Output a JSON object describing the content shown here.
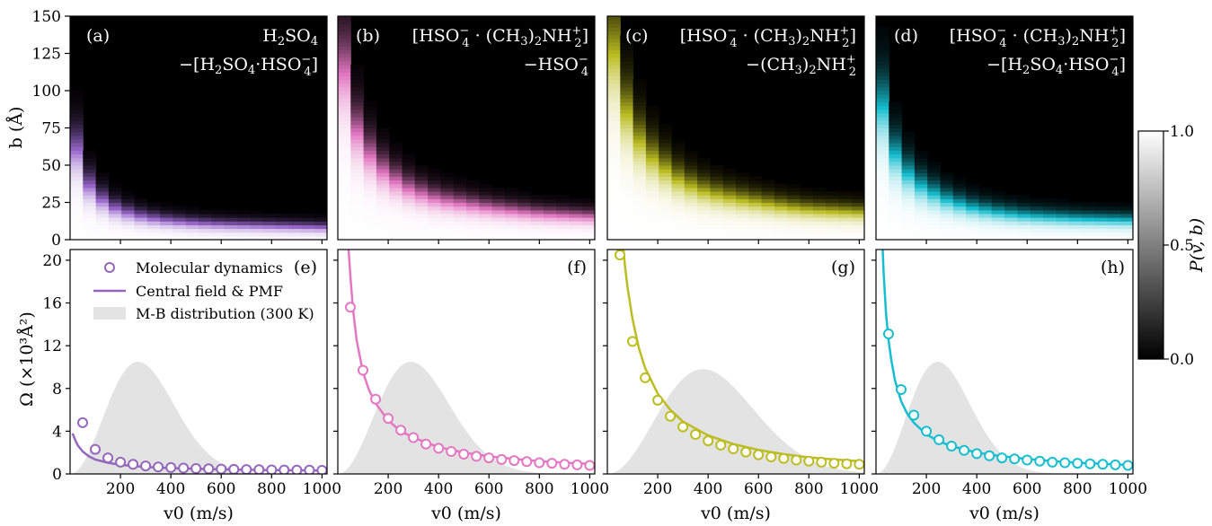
{
  "chart_data": [
    {
      "panel": "a",
      "type": "heatmap",
      "label": "(a)",
      "title_lines": [
        "H2SO4",
        "−[H2SO4·HSO4−]"
      ],
      "ylabel": "b (Å)",
      "xlim": [
        0,
        1020
      ],
      "ylim": [
        0,
        150
      ],
      "yticks": [
        "0",
        "25",
        "50",
        "75",
        "100",
        "125",
        "150"
      ],
      "color": "#9966cc",
      "boundary_b": [
        [
          20,
          75
        ],
        [
          40,
          60
        ],
        [
          60,
          48
        ],
        [
          80,
          40
        ],
        [
          100,
          34
        ],
        [
          150,
          26
        ],
        [
          200,
          21
        ],
        [
          300,
          16
        ],
        [
          400,
          13.5
        ],
        [
          500,
          12
        ],
        [
          600,
          11
        ],
        [
          700,
          10.5
        ],
        [
          800,
          10
        ],
        [
          900,
          9.5
        ],
        [
          1000,
          9
        ]
      ]
    },
    {
      "panel": "b",
      "type": "heatmap",
      "label": "(b)",
      "title_lines": [
        "[HSO4−·(CH3)2NH2+]",
        "−HSO4−"
      ],
      "xlim": [
        0,
        1020
      ],
      "ylim": [
        0,
        150
      ],
      "color": "#e377c2",
      "boundary_b": [
        [
          20,
          140
        ],
        [
          40,
          110
        ],
        [
          60,
          90
        ],
        [
          80,
          78
        ],
        [
          100,
          68
        ],
        [
          150,
          55
        ],
        [
          200,
          45
        ],
        [
          300,
          34
        ],
        [
          400,
          28
        ],
        [
          500,
          25
        ],
        [
          600,
          22
        ],
        [
          700,
          20
        ],
        [
          800,
          18
        ],
        [
          900,
          17
        ],
        [
          1000,
          16
        ]
      ]
    },
    {
      "panel": "c",
      "type": "heatmap",
      "label": "(c)",
      "title_lines": [
        "[HSO4−·(CH3)2NH2+]",
        "−(CH3)2NH2+"
      ],
      "xlim": [
        0,
        1020
      ],
      "ylim": [
        0,
        150
      ],
      "color": "#bcbd22",
      "boundary_b": [
        [
          20,
          150
        ],
        [
          40,
          125
        ],
        [
          60,
          105
        ],
        [
          80,
          92
        ],
        [
          100,
          80
        ],
        [
          150,
          64
        ],
        [
          200,
          54
        ],
        [
          300,
          40
        ],
        [
          400,
          33
        ],
        [
          500,
          29
        ],
        [
          600,
          26
        ],
        [
          700,
          23
        ],
        [
          800,
          21
        ],
        [
          900,
          20
        ],
        [
          1000,
          19
        ]
      ]
    },
    {
      "panel": "d",
      "type": "heatmap",
      "label": "(d)",
      "title_lines": [
        "[HSO4−·(CH3)2NH2+]",
        "−[H2SO4·HSO4−]"
      ],
      "xlim": [
        0,
        1020
      ],
      "ylim": [
        0,
        150
      ],
      "color": "#17becf",
      "boundary_b": [
        [
          20,
          110
        ],
        [
          40,
          88
        ],
        [
          60,
          73
        ],
        [
          80,
          62
        ],
        [
          100,
          55
        ],
        [
          150,
          43
        ],
        [
          200,
          36
        ],
        [
          300,
          27
        ],
        [
          400,
          22
        ],
        [
          500,
          19
        ],
        [
          600,
          17
        ],
        [
          700,
          16
        ],
        [
          800,
          15
        ],
        [
          900,
          14.5
        ],
        [
          1000,
          14
        ]
      ]
    },
    {
      "panel": "e",
      "type": "scatter",
      "label": "(e)",
      "xlabel": "v0 (m/s)",
      "ylabel": "Ω (×10³Å²)",
      "xlim": [
        0,
        1020
      ],
      "ylim": [
        0,
        21
      ],
      "xticks": [
        "200",
        "400",
        "600",
        "800",
        "1000"
      ],
      "yticks": [
        "0",
        "4",
        "8",
        "12",
        "16",
        "20"
      ],
      "color": "#9467bd",
      "md_x": [
        50,
        100,
        150,
        200,
        250,
        300,
        350,
        400,
        450,
        500,
        550,
        600,
        650,
        700,
        750,
        800,
        850,
        900,
        950,
        1000
      ],
      "md_y": [
        4.8,
        2.3,
        1.5,
        1.1,
        0.9,
        0.75,
        0.65,
        0.6,
        0.55,
        0.5,
        0.48,
        0.45,
        0.43,
        0.41,
        0.4,
        0.38,
        0.37,
        0.36,
        0.35,
        0.34
      ],
      "fit_x": [
        10,
        20,
        30,
        50,
        75,
        100,
        150,
        200,
        300,
        400,
        500,
        600,
        700,
        800,
        900,
        1000
      ],
      "fit_y": [
        3.8,
        3.2,
        2.7,
        2.1,
        1.65,
        1.35,
        1.05,
        0.85,
        0.65,
        0.55,
        0.48,
        0.43,
        0.39,
        0.36,
        0.34,
        0.32
      ],
      "mb_peak": 270,
      "mb_max": 10.5,
      "legend": [
        "Molecular dynamics",
        "Central field & PMF",
        "M-B distribution (300 K)"
      ]
    },
    {
      "panel": "f",
      "type": "scatter",
      "label": "(f)",
      "xlabel": "v0 (m/s)",
      "xlim": [
        0,
        1020
      ],
      "ylim": [
        0,
        21
      ],
      "xticks": [
        "200",
        "400",
        "600",
        "800",
        "1000"
      ],
      "color": "#e377c2",
      "md_x": [
        50,
        100,
        150,
        200,
        250,
        300,
        350,
        400,
        450,
        500,
        550,
        600,
        650,
        700,
        750,
        800,
        850,
        900,
        950,
        1000
      ],
      "md_y": [
        15.6,
        9.7,
        7.0,
        5.2,
        4.1,
        3.4,
        2.8,
        2.4,
        2.1,
        1.85,
        1.65,
        1.5,
        1.35,
        1.25,
        1.15,
        1.05,
        1.0,
        0.9,
        0.85,
        0.8
      ],
      "fit_x": [
        40,
        50,
        60,
        75,
        100,
        125,
        150,
        200,
        250,
        300,
        400,
        500,
        600,
        700,
        800,
        900,
        1000
      ],
      "fit_y": [
        22,
        18.5,
        15.5,
        12.5,
        9.5,
        7.8,
        6.6,
        5.0,
        4.0,
        3.4,
        2.5,
        2.0,
        1.65,
        1.4,
        1.2,
        1.05,
        0.95
      ],
      "mb_peak": 290,
      "mb_max": 10.5
    },
    {
      "panel": "g",
      "type": "scatter",
      "label": "(g)",
      "xlabel": "v0 (m/s)",
      "xlim": [
        0,
        1020
      ],
      "ylim": [
        0,
        21
      ],
      "xticks": [
        "200",
        "400",
        "600",
        "800",
        "1000"
      ],
      "color": "#bcbd22",
      "md_x": [
        50,
        100,
        150,
        200,
        250,
        300,
        350,
        400,
        450,
        500,
        550,
        600,
        650,
        700,
        750,
        800,
        850,
        900,
        950,
        1000
      ],
      "md_y": [
        20.5,
        12.4,
        9.0,
        6.9,
        5.4,
        4.4,
        3.7,
        3.1,
        2.7,
        2.35,
        2.05,
        1.8,
        1.6,
        1.45,
        1.3,
        1.2,
        1.1,
        1.0,
        0.95,
        0.9
      ],
      "fit_x": [
        60,
        70,
        80,
        100,
        125,
        150,
        200,
        250,
        300,
        400,
        500,
        600,
        700,
        800,
        900,
        1000
      ],
      "fit_y": [
        22,
        19.5,
        17.5,
        14.5,
        11.8,
        9.9,
        7.5,
        6.0,
        4.9,
        3.6,
        2.8,
        2.25,
        1.85,
        1.55,
        1.35,
        1.2
      ],
      "mb_peak": 380,
      "mb_max": 9.8
    },
    {
      "panel": "h",
      "type": "scatter",
      "label": "(h)",
      "xlabel": "v0 (m/s)",
      "xlim": [
        0,
        1020
      ],
      "ylim": [
        0,
        21
      ],
      "xticks": [
        "200",
        "400",
        "600",
        "800",
        "1000"
      ],
      "color": "#17becf",
      "md_x": [
        50,
        100,
        150,
        200,
        250,
        300,
        350,
        400,
        450,
        500,
        550,
        600,
        650,
        700,
        750,
        800,
        850,
        900,
        950,
        1000
      ],
      "md_y": [
        13.1,
        7.9,
        5.5,
        4.0,
        3.2,
        2.6,
        2.2,
        1.9,
        1.7,
        1.5,
        1.4,
        1.3,
        1.2,
        1.1,
        1.05,
        1.0,
        0.95,
        0.9,
        0.85,
        0.8
      ],
      "fit_x": [
        25,
        30,
        40,
        50,
        60,
        75,
        100,
        125,
        150,
        200,
        250,
        300,
        400,
        500,
        600,
        700,
        800,
        900,
        1000
      ],
      "fit_y": [
        22,
        19,
        15,
        12.5,
        10.8,
        8.8,
        6.8,
        5.6,
        4.8,
        3.7,
        3.05,
        2.6,
        2.0,
        1.65,
        1.4,
        1.2,
        1.05,
        0.95,
        0.85
      ],
      "mb_peak": 245,
      "mb_max": 10.5
    }
  ],
  "colorbar": {
    "label": "P(v, b)",
    "ticks": [
      "0.0",
      "0.5",
      "1.0"
    ]
  }
}
